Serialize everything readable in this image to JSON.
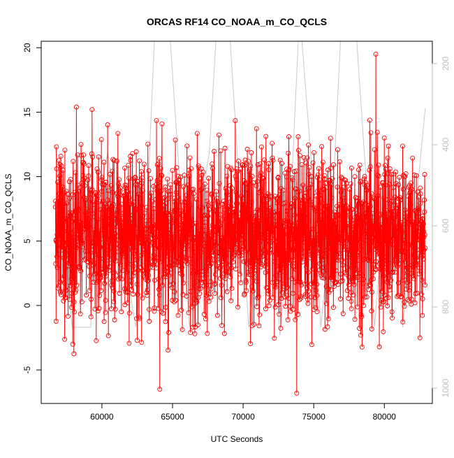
{
  "chart_data": {
    "type": "line",
    "title": "ORCAS RF14 CO_NOAA_m_CO_QCLS",
    "xlabel": "UTC Seconds",
    "ylabel": "CO_NOAA_m_CO_QCLS",
    "xlim": [
      55700,
      83400
    ],
    "ylim": [
      -7.6,
      20.5
    ],
    "x_ticks": [
      60000,
      65000,
      70000,
      75000,
      80000
    ],
    "x_tick_labels": [
      "60000",
      "65000",
      "70000",
      "75000",
      "80000"
    ],
    "y_ticks": [
      -5,
      0,
      5,
      10,
      15,
      20
    ],
    "y_tick_labels": [
      "-5",
      "0",
      "5",
      "10",
      "15",
      "20"
    ],
    "y2_ticks": [
      200,
      400,
      600,
      800,
      1000
    ],
    "y2_tick_labels": [
      "200",
      "400",
      "600",
      "800",
      "1000"
    ],
    "y2_reversed": true,
    "colors": {
      "series": "#ff0000",
      "secondary": "#c8c8c8",
      "axis": "#000000",
      "right_axis": "#bdbdbd"
    },
    "series": [
      {
        "role": "primary",
        "marker": "open-circle",
        "x_range": [
          56700,
          82900
        ],
        "mean": 5.5,
        "min": -6.8,
        "max": 19.5,
        "highlights": [
          [
            58200,
            15.4
          ],
          [
            59300,
            15.2
          ],
          [
            64100,
            -6.5
          ],
          [
            71300,
            12.3
          ],
          [
            73800,
            -6.8
          ],
          [
            73900,
            13.1
          ],
          [
            79400,
            19.5
          ],
          [
            80000,
            13.0
          ]
        ]
      },
      {
        "role": "secondary-axis",
        "color": "#c8c8c8",
        "x": [
          56700,
          57100,
          57900,
          59200,
          59500,
          60400,
          61200,
          62400,
          63200,
          63800,
          64700,
          65400,
          66200,
          66800,
          67600,
          68200,
          69000,
          69700,
          70400,
          71000,
          71900,
          72600,
          73300,
          74000,
          74800,
          75500,
          76300,
          77000,
          77900,
          78700,
          79300,
          79900,
          80600,
          81300,
          82100,
          82900
        ],
        "y": [
          400,
          560,
          850,
          850,
          600,
          420,
          600,
          850,
          560,
          70,
          70,
          430,
          850,
          600,
          420,
          70,
          100,
          480,
          850,
          600,
          430,
          870,
          600,
          70,
          430,
          850,
          560,
          70,
          70,
          480,
          850,
          600,
          470,
          850,
          600,
          310
        ]
      }
    ]
  }
}
